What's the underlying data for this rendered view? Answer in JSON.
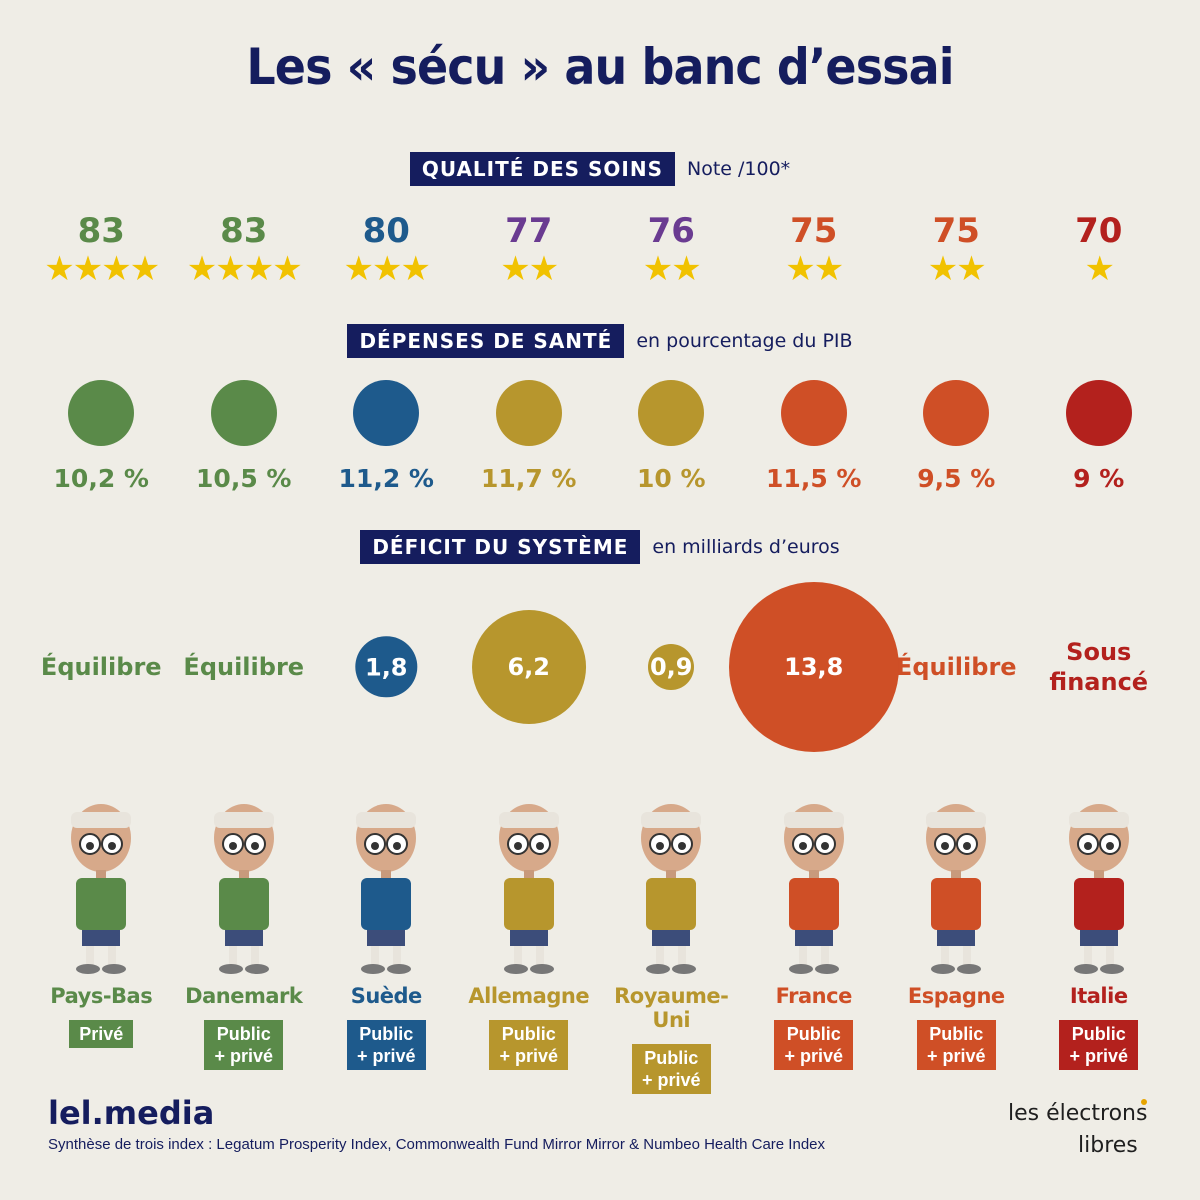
{
  "title": "Les « sécu » au banc d’essai",
  "colors": {
    "navy": "#151d5e",
    "green": "#5a8a49",
    "blue": "#1e5a8c",
    "purple": "#6a3b91",
    "mustard": "#b7962d",
    "orange": "#cf4f26",
    "red": "#b3211d",
    "star": "#f1c200",
    "background": "#efede6"
  },
  "sections": {
    "quality": {
      "label": "QUALITÉ DES SOINS",
      "sub": "Note /100*"
    },
    "spending": {
      "label": "DÉPENSES DE SANTÉ",
      "sub": "en pourcentage du PIB"
    },
    "deficit": {
      "label": "DÉFICIT DU SYSTÈME",
      "sub": "en milliards d’euros"
    }
  },
  "countries": [
    {
      "name": "Pays-Bas",
      "score": "83",
      "stars": 4,
      "score_color": "#5a8a49",
      "spending": "10,2 %",
      "color": "#5a8a49",
      "deficit": "Équilibre",
      "deficit_value": null,
      "system": "Privé"
    },
    {
      "name": "Danemark",
      "score": "83",
      "stars": 4,
      "score_color": "#5a8a49",
      "spending": "10,5 %",
      "color": "#5a8a49",
      "deficit": "Équilibre",
      "deficit_value": null,
      "system": "Public\n+ privé"
    },
    {
      "name": "Suède",
      "score": "80",
      "stars": 3,
      "score_color": "#1e5a8c",
      "spending": "11,2 %",
      "color": "#1e5a8c",
      "deficit": "1,8",
      "deficit_value": 1.8,
      "system": "Public\n+ privé"
    },
    {
      "name": "Allemagne",
      "score": "77",
      "stars": 2,
      "score_color": "#6a3b91",
      "spending": "11,7 %",
      "color": "#b7962d",
      "deficit": "6,2",
      "deficit_value": 6.2,
      "system": "Public\n+ privé"
    },
    {
      "name": "Royaume-Uni",
      "score": "76",
      "stars": 2,
      "score_color": "#6a3b91",
      "spending": "10 %",
      "color": "#b7962d",
      "deficit": "0,9",
      "deficit_value": 0.9,
      "system": "Public\n+ privé"
    },
    {
      "name": "France",
      "score": "75",
      "stars": 2,
      "score_color": "#cf4f26",
      "spending": "11,5 %",
      "color": "#cf4f26",
      "deficit": "13,8",
      "deficit_value": 13.8,
      "system": "Public\n+ privé"
    },
    {
      "name": "Espagne",
      "score": "75",
      "stars": 2,
      "score_color": "#cf4f26",
      "spending": "9,5 %",
      "color": "#cf4f26",
      "deficit": "Équilibre",
      "deficit_value": null,
      "system": "Public\n+ privé"
    },
    {
      "name": "Italie",
      "score": "70",
      "stars": 1,
      "score_color": "#b3211d",
      "spending": "9 %",
      "color": "#b3211d",
      "deficit": "Sous\nfinancé",
      "deficit_value": null,
      "system": "Public\n+ privé"
    }
  ],
  "brand": "lel.media",
  "footnote": "Synthèse de trois index : Legatum Prosperity Index, Commonwealth Fund Mirror Mirror & Numbeo Health Care Index",
  "logo_text": {
    "line1": "les électrons",
    "line2": "libres"
  }
}
